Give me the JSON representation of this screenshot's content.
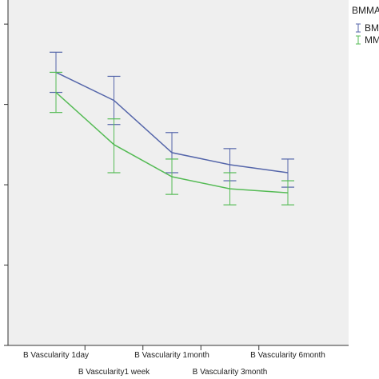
{
  "chart_data": {
    "type": "line",
    "title": "",
    "xlabel": "",
    "ylabel": "",
    "categories": [
      "B Vascularity 1day",
      "B Vascularity1 week",
      "B Vascularity 1month",
      "B Vascularity 3month",
      "B Vascularity 6month"
    ],
    "ylim": [
      0,
      4.3
    ],
    "grid": false,
    "legend": {
      "title": "BMMA",
      "position": "top-right",
      "entries": [
        "BM",
        "MM"
      ]
    },
    "series": [
      {
        "name": "BM",
        "color": "#5566aa",
        "values": [
          3.4,
          3.05,
          2.4,
          2.25,
          2.15
        ],
        "error_low": [
          3.15,
          2.75,
          2.15,
          2.05,
          1.97
        ],
        "error_high": [
          3.65,
          3.35,
          2.65,
          2.45,
          2.32
        ]
      },
      {
        "name": "MM",
        "color": "#55bb55",
        "values": [
          3.15,
          2.5,
          2.1,
          1.95,
          1.9
        ],
        "error_low": [
          2.9,
          2.15,
          1.88,
          1.75,
          1.75
        ],
        "error_high": [
          3.4,
          2.82,
          2.32,
          2.15,
          2.05
        ]
      }
    ]
  }
}
